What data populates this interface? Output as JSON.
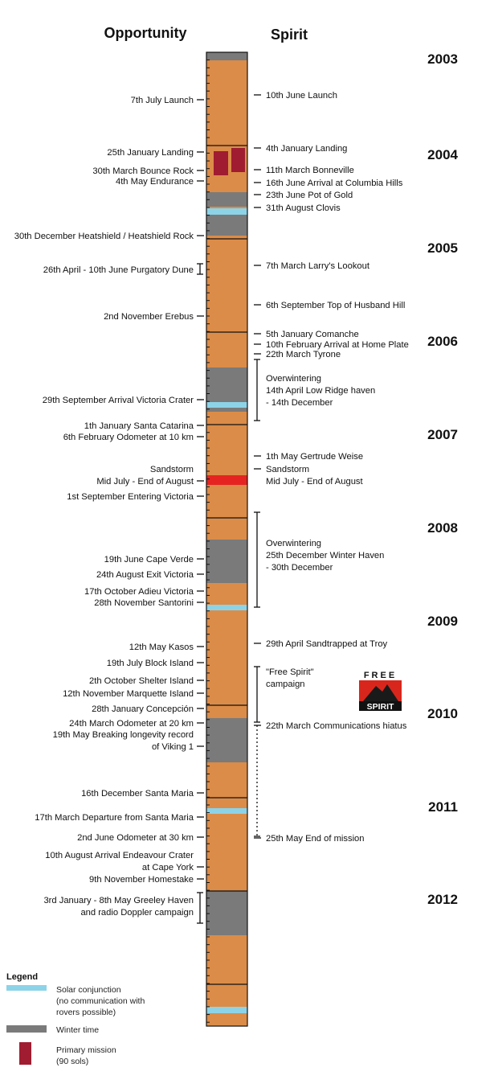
{
  "headers": {
    "left": "Opportunity",
    "right": "Spirit"
  },
  "colors": {
    "active": "#db8c48",
    "winter": "#7a7a7a",
    "conjunction": "#8dd3e8",
    "primary": "#a01c30",
    "sandstorm": "#e52421",
    "line": "#111111"
  },
  "years": [
    "2003",
    "2004",
    "2005",
    "2006",
    "2007",
    "2008",
    "2009",
    "2010",
    "2011",
    "2012"
  ],
  "opportunity_events": [
    {
      "lines": [
        "7th July Launch"
      ]
    },
    {
      "lines": [
        "25th January  Landing"
      ]
    },
    {
      "lines": [
        "30th March  Bounce Rock"
      ]
    },
    {
      "lines": [
        "4th May Endurance"
      ]
    },
    {
      "lines": [
        "30th December Heatshield / Heatshield Rock"
      ]
    },
    {
      "lines": [
        "26th April - 10th  June Purgatory Dune"
      ]
    },
    {
      "lines": [
        "2nd November  Erebus"
      ]
    },
    {
      "lines": [
        "29th September Arrival Victoria Crater"
      ]
    },
    {
      "lines": [
        "1th January Santa Catarina"
      ]
    },
    {
      "lines": [
        "6th February Odometer at 10 km"
      ]
    },
    {
      "lines": [
        "Sandstorm",
        "Mid July - End of August"
      ]
    },
    {
      "lines": [
        "1st September Entering Victoria"
      ]
    },
    {
      "lines": [
        "19th June Cape Verde"
      ]
    },
    {
      "lines": [
        "24th August Exit Victoria"
      ]
    },
    {
      "lines": [
        "17th October  Adieu Victoria"
      ]
    },
    {
      "lines": [
        "28th November  Santorini"
      ]
    },
    {
      "lines": [
        "12th  May Kasos"
      ]
    },
    {
      "lines": [
        "19th July Block Island"
      ]
    },
    {
      "lines": [
        "2th October  Shelter Island"
      ]
    },
    {
      "lines": [
        "12th November  Marquette Island"
      ]
    },
    {
      "lines": [
        "28th January  Concepción"
      ]
    },
    {
      "lines": [
        "24th March Odometer at 20 km"
      ]
    },
    {
      "lines": [
        "19th May Breaking longevity record",
        "of Viking 1"
      ]
    },
    {
      "lines": [
        "16th December Santa Maria"
      ]
    },
    {
      "lines": [
        "17th March Departure from Santa Maria"
      ]
    },
    {
      "lines": [
        "2nd June Odometer at 30 km"
      ]
    },
    {
      "lines": [
        "10th August Arrival Endeavour Crater",
        "at Cape York"
      ]
    },
    {
      "lines": [
        "9th November Homestake"
      ]
    },
    {
      "lines": [
        "3rd January - 8th May   Greeley Haven",
        "and radio Doppler campaign"
      ]
    }
  ],
  "spirit_events": [
    {
      "lines": [
        "10th June  Launch"
      ]
    },
    {
      "lines": [
        "4th January  Landing"
      ]
    },
    {
      "lines": [
        "11th March  Bonneville"
      ]
    },
    {
      "lines": [
        "16th June  Arrival at Columbia Hills"
      ]
    },
    {
      "lines": [
        "23th June Pot of Gold"
      ]
    },
    {
      "lines": [
        "31th August  Clovis"
      ]
    },
    {
      "lines": [
        "7th March  Larry's Lookout"
      ]
    },
    {
      "lines": [
        "6th September  Top of Husband Hill"
      ]
    },
    {
      "lines": [
        "5th January  Comanche"
      ]
    },
    {
      "lines": [
        "10th February  Arrival at Home Plate"
      ]
    },
    {
      "lines": [
        "22th March  Tyrone"
      ]
    },
    {
      "lines": [
        "Overwintering",
        "14th April  Low Ridge haven",
        "- 14th December"
      ]
    },
    {
      "lines": [
        "1th May  Gertrude Weise"
      ]
    },
    {
      "lines": [
        "Sandstorm",
        "Mid July - End of August"
      ]
    },
    {
      "lines": [
        "Overwintering",
        "25th December  Winter Haven",
        "- 30th December"
      ]
    },
    {
      "lines": [
        "29th April Sandtrapped at Troy"
      ]
    },
    {
      "lines": [
        "\"Free Spirit\"",
        "campaign"
      ]
    },
    {
      "lines": [
        "22th March  Communications hiatus"
      ]
    },
    {
      "lines": [
        "25th May   End of mission"
      ]
    }
  ],
  "logo": {
    "top": "FREE",
    "bottom": "SPIRIT"
  },
  "legend": {
    "title": "Legend",
    "items": [
      {
        "lines": [
          "Solar conjunction",
          "(no communication with",
          "rovers possible)"
        ]
      },
      {
        "lines": [
          "Winter time"
        ]
      },
      {
        "lines": [
          "Primary mission",
          "(90 sols)"
        ]
      }
    ]
  }
}
